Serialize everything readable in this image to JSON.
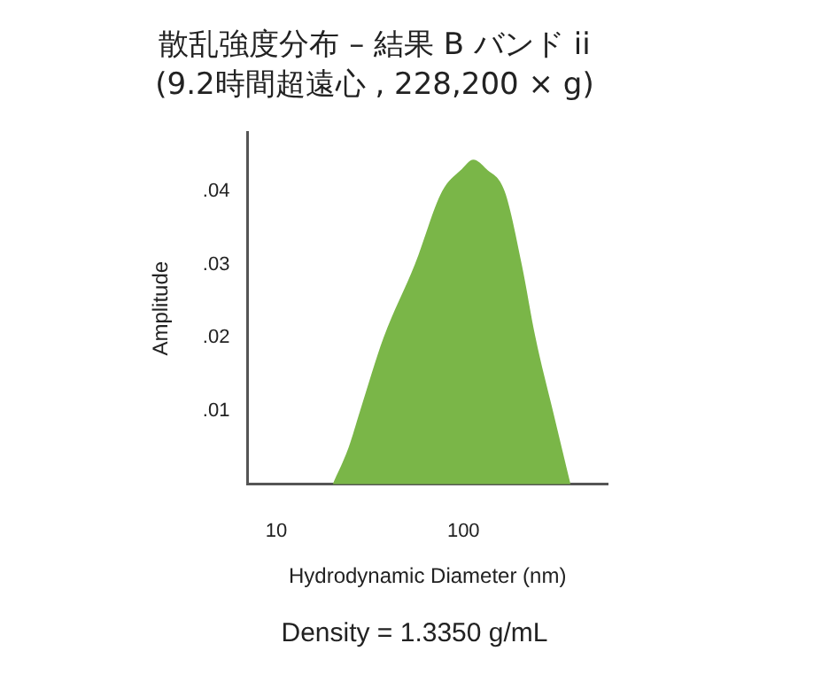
{
  "chart_data": {
    "type": "area",
    "title": "散乱強度分布 – 結果 B バンド ii",
    "subtitle": "(9.2時間超遠心 , 228,200 × g)",
    "xlabel": "Hydrodynamic Diameter (nm)",
    "ylabel": "Amplitude",
    "log": "x",
    "grid": false,
    "x": [
      20,
      24.3,
      28,
      37.4,
      55,
      77,
      98,
      113,
      133,
      166,
      205,
      243,
      301,
      374
    ],
    "values": [
      0,
      0.005,
      0.01,
      0.02,
      0.03,
      0.04,
      0.043,
      0.0443,
      0.043,
      0.04,
      0.03,
      0.02,
      0.01,
      0
    ],
    "color": "#7ab648",
    "xlim": [
      7,
      590
    ],
    "xticks": [
      10,
      100
    ],
    "ylim": [
      0,
      0.048
    ],
    "yticks": [
      {
        "value": 0.01,
        "label": ".01"
      },
      {
        "value": 0.02,
        "label": ".02"
      },
      {
        "value": 0.03,
        "label": ".03"
      },
      {
        "value": 0.04,
        "label": ".04"
      }
    ],
    "annotations": [
      "Density = 1.3350 g/mL"
    ]
  }
}
